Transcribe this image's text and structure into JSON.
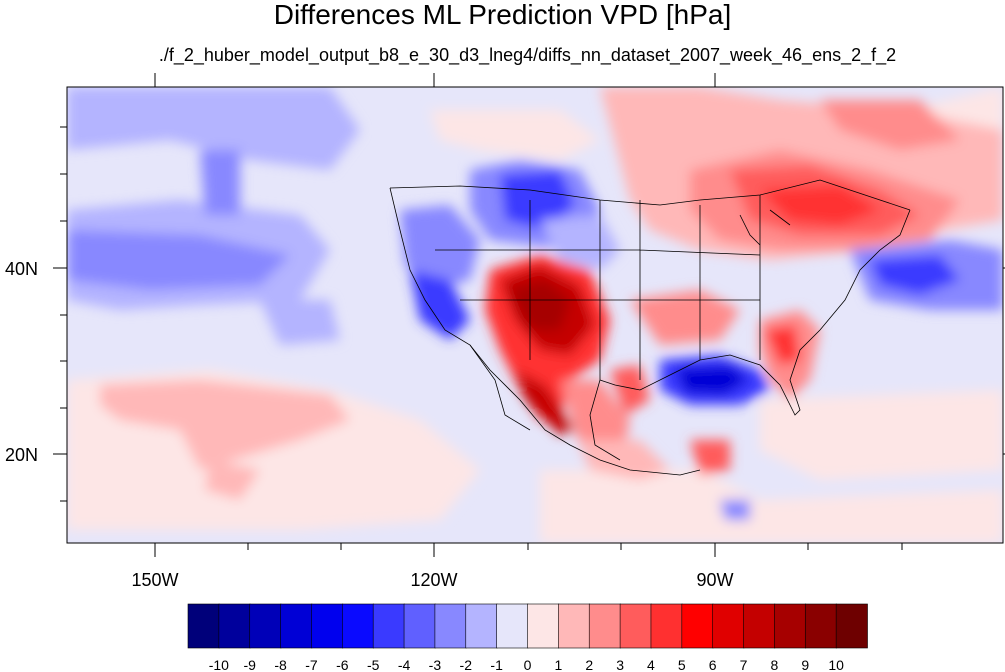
{
  "title": "Differences ML Prediction VPD [hPa]",
  "subtitle": "./f_2_huber_model_output_b8_e_30_d3_lneg4/diffs_nn_dataset_2007_week_46_ens_2_f_2",
  "axes": {
    "x_ticks": [
      "150W",
      "120W",
      "90W"
    ],
    "y_ticks": [
      "40N",
      "20N"
    ]
  },
  "colorbar": {
    "labels": [
      "-10",
      "-9",
      "-8",
      "-7",
      "-6",
      "-5",
      "-4",
      "-3",
      "-2",
      "-1",
      "0",
      "1",
      "2",
      "3",
      "4",
      "5",
      "6",
      "7",
      "8",
      "9",
      "10"
    ],
    "colors": [
      "#00007a",
      "#00009c",
      "#0000b8",
      "#0000d6",
      "#0000ee",
      "#0a0aff",
      "#3a3aff",
      "#6060ff",
      "#8888ff",
      "#b4b4ff",
      "#e6e6fa",
      "#fde6e6",
      "#ffb8b8",
      "#ff8c8c",
      "#ff5c5c",
      "#ff3030",
      "#ff0000",
      "#e00000",
      "#c40000",
      "#a60000",
      "#8a0000",
      "#6e0000"
    ]
  }
}
